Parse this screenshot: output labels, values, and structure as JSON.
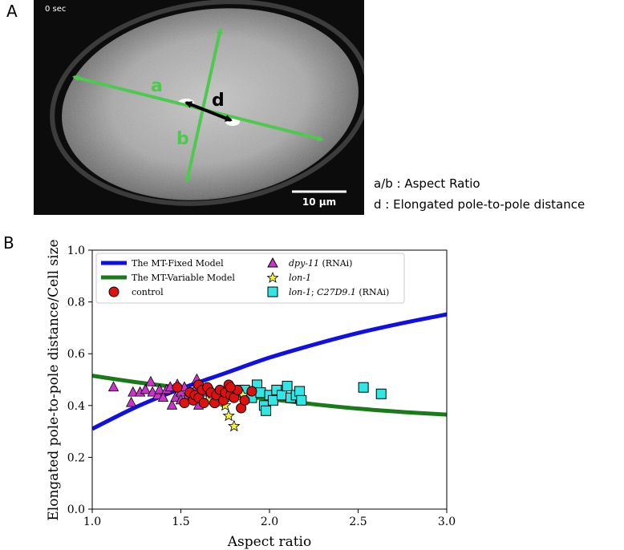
{
  "panel_a": {
    "label": "A",
    "timestamp": "0 sec",
    "arrow_labels": {
      "a": "a",
      "b": "b",
      "d": "d"
    },
    "scale_bar": "10 µm",
    "legend_lines": [
      "a/b : Aspect Ratio",
      "d : Elongated pole-to-pole distance"
    ]
  },
  "panel_b": {
    "label": "B"
  },
  "chart_data": {
    "type": "scatter",
    "xlabel": "Aspect ratio",
    "ylabel": "Elongated pole-to-pole distance/Cell size",
    "xlim": [
      1.0,
      3.0
    ],
    "ylim": [
      0.0,
      1.0
    ],
    "x_ticks": [
      "1.0",
      "1.5",
      "2.0",
      "2.5",
      "3.0"
    ],
    "y_ticks": [
      "0.0",
      "0.2",
      "0.4",
      "0.6",
      "0.8",
      "1.0"
    ],
    "grid": false,
    "legend_placement": "top",
    "lines": [
      {
        "name": "The MT-Fixed Model",
        "color": "#1010e0",
        "points": [
          [
            1.0,
            0.31
          ],
          [
            1.25,
            0.395
          ],
          [
            1.5,
            0.465
          ],
          [
            1.75,
            0.525
          ],
          [
            2.0,
            0.585
          ],
          [
            2.25,
            0.635
          ],
          [
            2.5,
            0.68
          ],
          [
            2.75,
            0.718
          ],
          [
            3.0,
            0.752
          ]
        ]
      },
      {
        "name": "The MT-Variable Model",
        "color": "#1a7a1a",
        "points": [
          [
            1.0,
            0.515
          ],
          [
            1.25,
            0.49
          ],
          [
            1.5,
            0.468
          ],
          [
            1.75,
            0.445
          ],
          [
            2.0,
            0.425
          ],
          [
            2.25,
            0.405
          ],
          [
            2.5,
            0.388
          ],
          [
            2.75,
            0.375
          ],
          [
            3.0,
            0.365
          ]
        ]
      }
    ],
    "series": [
      {
        "name": "control",
        "marker": "circle",
        "color": "#e01010",
        "points": [
          [
            1.48,
            0.47
          ],
          [
            1.52,
            0.41
          ],
          [
            1.55,
            0.45
          ],
          [
            1.57,
            0.42
          ],
          [
            1.58,
            0.44
          ],
          [
            1.6,
            0.48
          ],
          [
            1.6,
            0.43
          ],
          [
            1.62,
            0.46
          ],
          [
            1.65,
            0.47
          ],
          [
            1.67,
            0.45
          ],
          [
            1.69,
            0.41
          ],
          [
            1.7,
            0.44
          ],
          [
            1.72,
            0.46
          ],
          [
            1.74,
            0.42
          ],
          [
            1.75,
            0.45
          ],
          [
            1.77,
            0.48
          ],
          [
            1.78,
            0.44
          ],
          [
            1.8,
            0.43
          ],
          [
            1.82,
            0.46
          ],
          [
            1.84,
            0.39
          ],
          [
            1.86,
            0.42
          ],
          [
            1.9,
            0.455
          ],
          [
            1.78,
            0.47
          ],
          [
            1.63,
            0.41
          ]
        ]
      },
      {
        "name": "dpy-11 (RNAi)",
        "marker": "triangle",
        "color": "#cc33cc",
        "points": [
          [
            1.12,
            0.47
          ],
          [
            1.22,
            0.41
          ],
          [
            1.23,
            0.45
          ],
          [
            1.27,
            0.45
          ],
          [
            1.3,
            0.46
          ],
          [
            1.33,
            0.49
          ],
          [
            1.34,
            0.45
          ],
          [
            1.37,
            0.44
          ],
          [
            1.38,
            0.46
          ],
          [
            1.4,
            0.43
          ],
          [
            1.42,
            0.46
          ],
          [
            1.44,
            0.47
          ],
          [
            1.45,
            0.4
          ],
          [
            1.47,
            0.43
          ],
          [
            1.48,
            0.48
          ],
          [
            1.5,
            0.45
          ],
          [
            1.52,
            0.47
          ],
          [
            1.54,
            0.44
          ],
          [
            1.56,
            0.43
          ],
          [
            1.58,
            0.46
          ],
          [
            1.59,
            0.5
          ],
          [
            1.6,
            0.4
          ],
          [
            1.62,
            0.45
          ],
          [
            1.5,
            0.42
          ]
        ]
      },
      {
        "name": "lon-1",
        "marker": "star",
        "color": "#f2f23a",
        "points": [
          [
            1.6,
            0.44
          ],
          [
            1.65,
            0.42
          ],
          [
            1.68,
            0.45
          ],
          [
            1.7,
            0.43
          ],
          [
            1.72,
            0.41
          ],
          [
            1.75,
            0.4
          ],
          [
            1.77,
            0.36
          ],
          [
            1.8,
            0.32
          ],
          [
            1.78,
            0.43
          ],
          [
            1.85,
            0.44
          ]
        ]
      },
      {
        "name": "lon-1; C27D9.1 (RNAi)",
        "marker": "square",
        "color": "#33e6e6",
        "points": [
          [
            1.86,
            0.46
          ],
          [
            1.9,
            0.43
          ],
          [
            1.93,
            0.48
          ],
          [
            1.95,
            0.45
          ],
          [
            1.97,
            0.4
          ],
          [
            2.0,
            0.44
          ],
          [
            2.02,
            0.42
          ],
          [
            2.04,
            0.46
          ],
          [
            2.07,
            0.44
          ],
          [
            2.1,
            0.475
          ],
          [
            2.12,
            0.43
          ],
          [
            2.15,
            0.44
          ],
          [
            2.17,
            0.455
          ],
          [
            2.18,
            0.42
          ],
          [
            1.98,
            0.38
          ],
          [
            2.53,
            0.47
          ],
          [
            2.63,
            0.445
          ]
        ]
      }
    ]
  }
}
